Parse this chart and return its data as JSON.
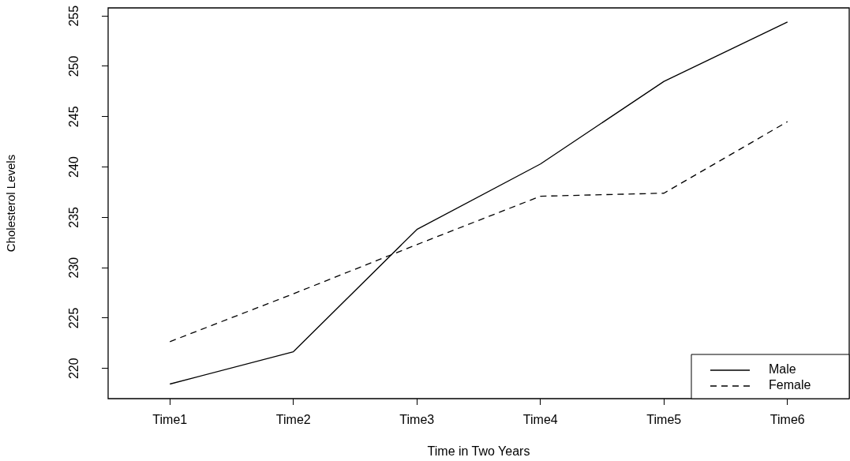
{
  "chart_data": {
    "type": "line",
    "xlabel": "Time in Two Years",
    "ylabel": "Cholesterol Levels",
    "categories": [
      "Time1",
      "Time2",
      "Time3",
      "Time4",
      "Time5",
      "Time6"
    ],
    "series": [
      {
        "name": "Male",
        "color": "#000000",
        "line_style": "solid",
        "values": [
          218.45,
          221.66,
          233.8,
          240.3,
          248.5,
          254.4
        ]
      },
      {
        "name": "Female",
        "color": "#000000",
        "line_style": "dashed",
        "values": [
          222.66,
          227.41,
          232.3,
          237.1,
          237.4,
          244.5
        ]
      }
    ],
    "ylim": [
      217.0,
      255.8
    ],
    "yticks": [
      220,
      225,
      230,
      235,
      240,
      245,
      250,
      255
    ],
    "grid": false,
    "legend": "bottom right",
    "marker": "none"
  }
}
